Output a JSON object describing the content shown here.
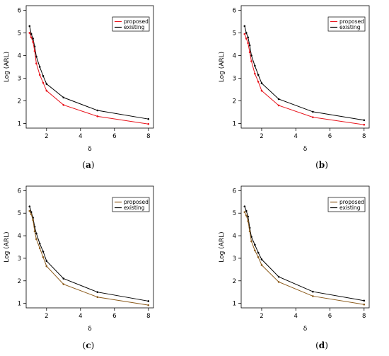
{
  "captions": [
    {
      "open": "(",
      "letter": "a",
      "close": ")"
    },
    {
      "open": "(",
      "letter": "b",
      "close": ")"
    },
    {
      "open": "(",
      "letter": "c",
      "close": ")"
    },
    {
      "open": "(",
      "letter": "d",
      "close": ")"
    }
  ],
  "chart_data": [
    {
      "type": "line",
      "xlabel": "δ",
      "ylabel": "Log (ARL)",
      "xlim": [
        0.8,
        8.3
      ],
      "ylim": [
        0.8,
        6.2
      ],
      "xticks": [
        2,
        4,
        6,
        8
      ],
      "yticks": [
        1,
        2,
        3,
        4,
        5,
        6
      ],
      "x": [
        1.0,
        1.1,
        1.2,
        1.3,
        1.4,
        1.6,
        1.8,
        2.0,
        3.0,
        5.0,
        8.0
      ],
      "legend_position": "top-right",
      "series": [
        {
          "name": "proposed",
          "color": "#e8141c",
          "values": [
            5.0,
            4.8,
            4.6,
            4.2,
            3.65,
            3.15,
            2.8,
            2.45,
            1.82,
            1.32,
            0.98
          ]
        },
        {
          "name": "existing",
          "color": "#000000",
          "values": [
            5.3,
            4.95,
            4.75,
            4.4,
            3.95,
            3.5,
            3.1,
            2.75,
            2.15,
            1.58,
            1.2
          ]
        }
      ]
    },
    {
      "type": "line",
      "xlabel": "δ",
      "ylabel": "Log (ARL)",
      "xlim": [
        0.8,
        8.3
      ],
      "ylim": [
        0.8,
        6.2
      ],
      "xticks": [
        2,
        4,
        6,
        8
      ],
      "yticks": [
        1,
        2,
        3,
        4,
        5,
        6
      ],
      "x": [
        1.0,
        1.1,
        1.2,
        1.3,
        1.4,
        1.6,
        1.8,
        2.0,
        3.0,
        5.0,
        8.0
      ],
      "legend_position": "top-right",
      "series": [
        {
          "name": "proposed",
          "color": "#e8141c",
          "values": [
            4.95,
            4.75,
            4.55,
            4.15,
            3.75,
            3.2,
            2.85,
            2.45,
            1.8,
            1.28,
            0.95
          ]
        },
        {
          "name": "existing",
          "color": "#000000",
          "values": [
            5.3,
            5.0,
            4.8,
            4.45,
            4.0,
            3.55,
            3.15,
            2.78,
            2.08,
            1.52,
            1.15
          ]
        }
      ]
    },
    {
      "type": "line",
      "xlabel": "δ",
      "ylabel": "Log (ARL)",
      "xlim": [
        0.8,
        8.3
      ],
      "ylim": [
        0.8,
        6.2
      ],
      "xticks": [
        2,
        4,
        6,
        8
      ],
      "yticks": [
        1,
        2,
        3,
        4,
        5,
        6
      ],
      "x": [
        1.0,
        1.1,
        1.2,
        1.3,
        1.4,
        1.6,
        1.8,
        2.0,
        3.0,
        5.0,
        8.0
      ],
      "legend_position": "top-right",
      "series": [
        {
          "name": "proposed",
          "color": "#8b5a1a",
          "values": [
            5.1,
            4.95,
            4.7,
            4.2,
            3.85,
            3.45,
            3.05,
            2.65,
            1.85,
            1.28,
            0.92
          ]
        },
        {
          "name": "existing",
          "color": "#000000",
          "values": [
            5.3,
            5.05,
            4.8,
            4.4,
            4.1,
            3.65,
            3.3,
            2.88,
            2.1,
            1.5,
            1.1
          ]
        }
      ]
    },
    {
      "type": "line",
      "xlabel": "δ",
      "ylabel": "Log (ARL)",
      "xlim": [
        0.8,
        8.3
      ],
      "ylim": [
        0.8,
        6.2
      ],
      "xticks": [
        2,
        4,
        6,
        8
      ],
      "yticks": [
        1,
        2,
        3,
        4,
        5,
        6
      ],
      "x": [
        1.0,
        1.1,
        1.2,
        1.3,
        1.4,
        1.6,
        1.8,
        2.0,
        3.0,
        5.0,
        8.0
      ],
      "legend_position": "top-right",
      "series": [
        {
          "name": "proposed",
          "color": "#8b5a1a",
          "values": [
            5.05,
            4.9,
            4.65,
            4.2,
            3.75,
            3.35,
            3.05,
            2.7,
            1.95,
            1.32,
            0.95
          ]
        },
        {
          "name": "existing",
          "color": "#000000",
          "values": [
            5.3,
            5.1,
            4.85,
            4.35,
            3.95,
            3.6,
            3.25,
            2.95,
            2.18,
            1.52,
            1.12
          ]
        }
      ]
    }
  ]
}
